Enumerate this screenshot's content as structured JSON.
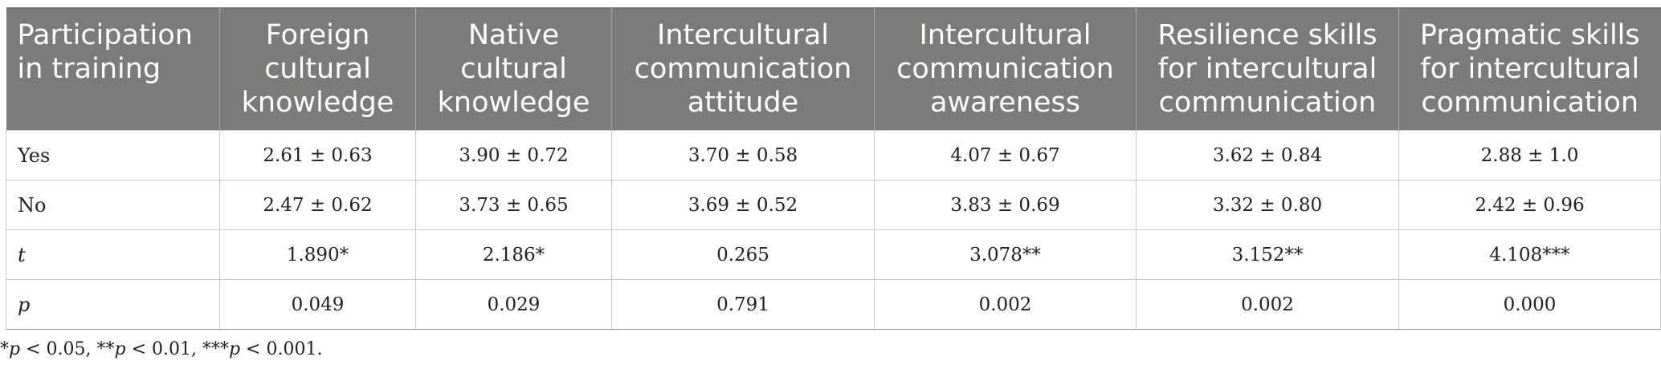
{
  "table": {
    "headers": [
      "Participation in training",
      "Foreign cultural knowledge",
      "Native cultural knowledge",
      "Intercultural communication attitude",
      "Intercultural communication awareness",
      "Resilience skills for intercultural communication",
      "Pragmatic skills for intercultural communication"
    ],
    "rows": [
      {
        "label": "Yes",
        "cells": [
          "2.61 ± 0.63",
          "3.90 ± 0.72",
          "3.70 ± 0.58",
          "4.07 ± 0.67",
          "3.62 ± 0.84",
          "2.88 ± 1.0"
        ]
      },
      {
        "label": "No",
        "cells": [
          "2.47 ± 0.62",
          "3.73 ± 0.65",
          "3.69 ± 0.52",
          "3.83 ± 0.69",
          "3.32 ± 0.80",
          "2.42 ± 0.96"
        ]
      },
      {
        "label": "t",
        "cells": [
          "1.890*",
          "2.186*",
          "0.265",
          "3.078**",
          "3.152**",
          "4.108***"
        ]
      },
      {
        "label": "p",
        "cells": [
          "0.049",
          "0.029",
          "0.791",
          "0.002",
          "0.002",
          "0.000"
        ]
      }
    ]
  },
  "footnote": {
    "s1": "*",
    "p1": "p",
    "s2": " < 0.05, **",
    "p2": "p",
    "s3": " < 0.01, ***",
    "p3": "p",
    "s4": " < 0.001."
  }
}
